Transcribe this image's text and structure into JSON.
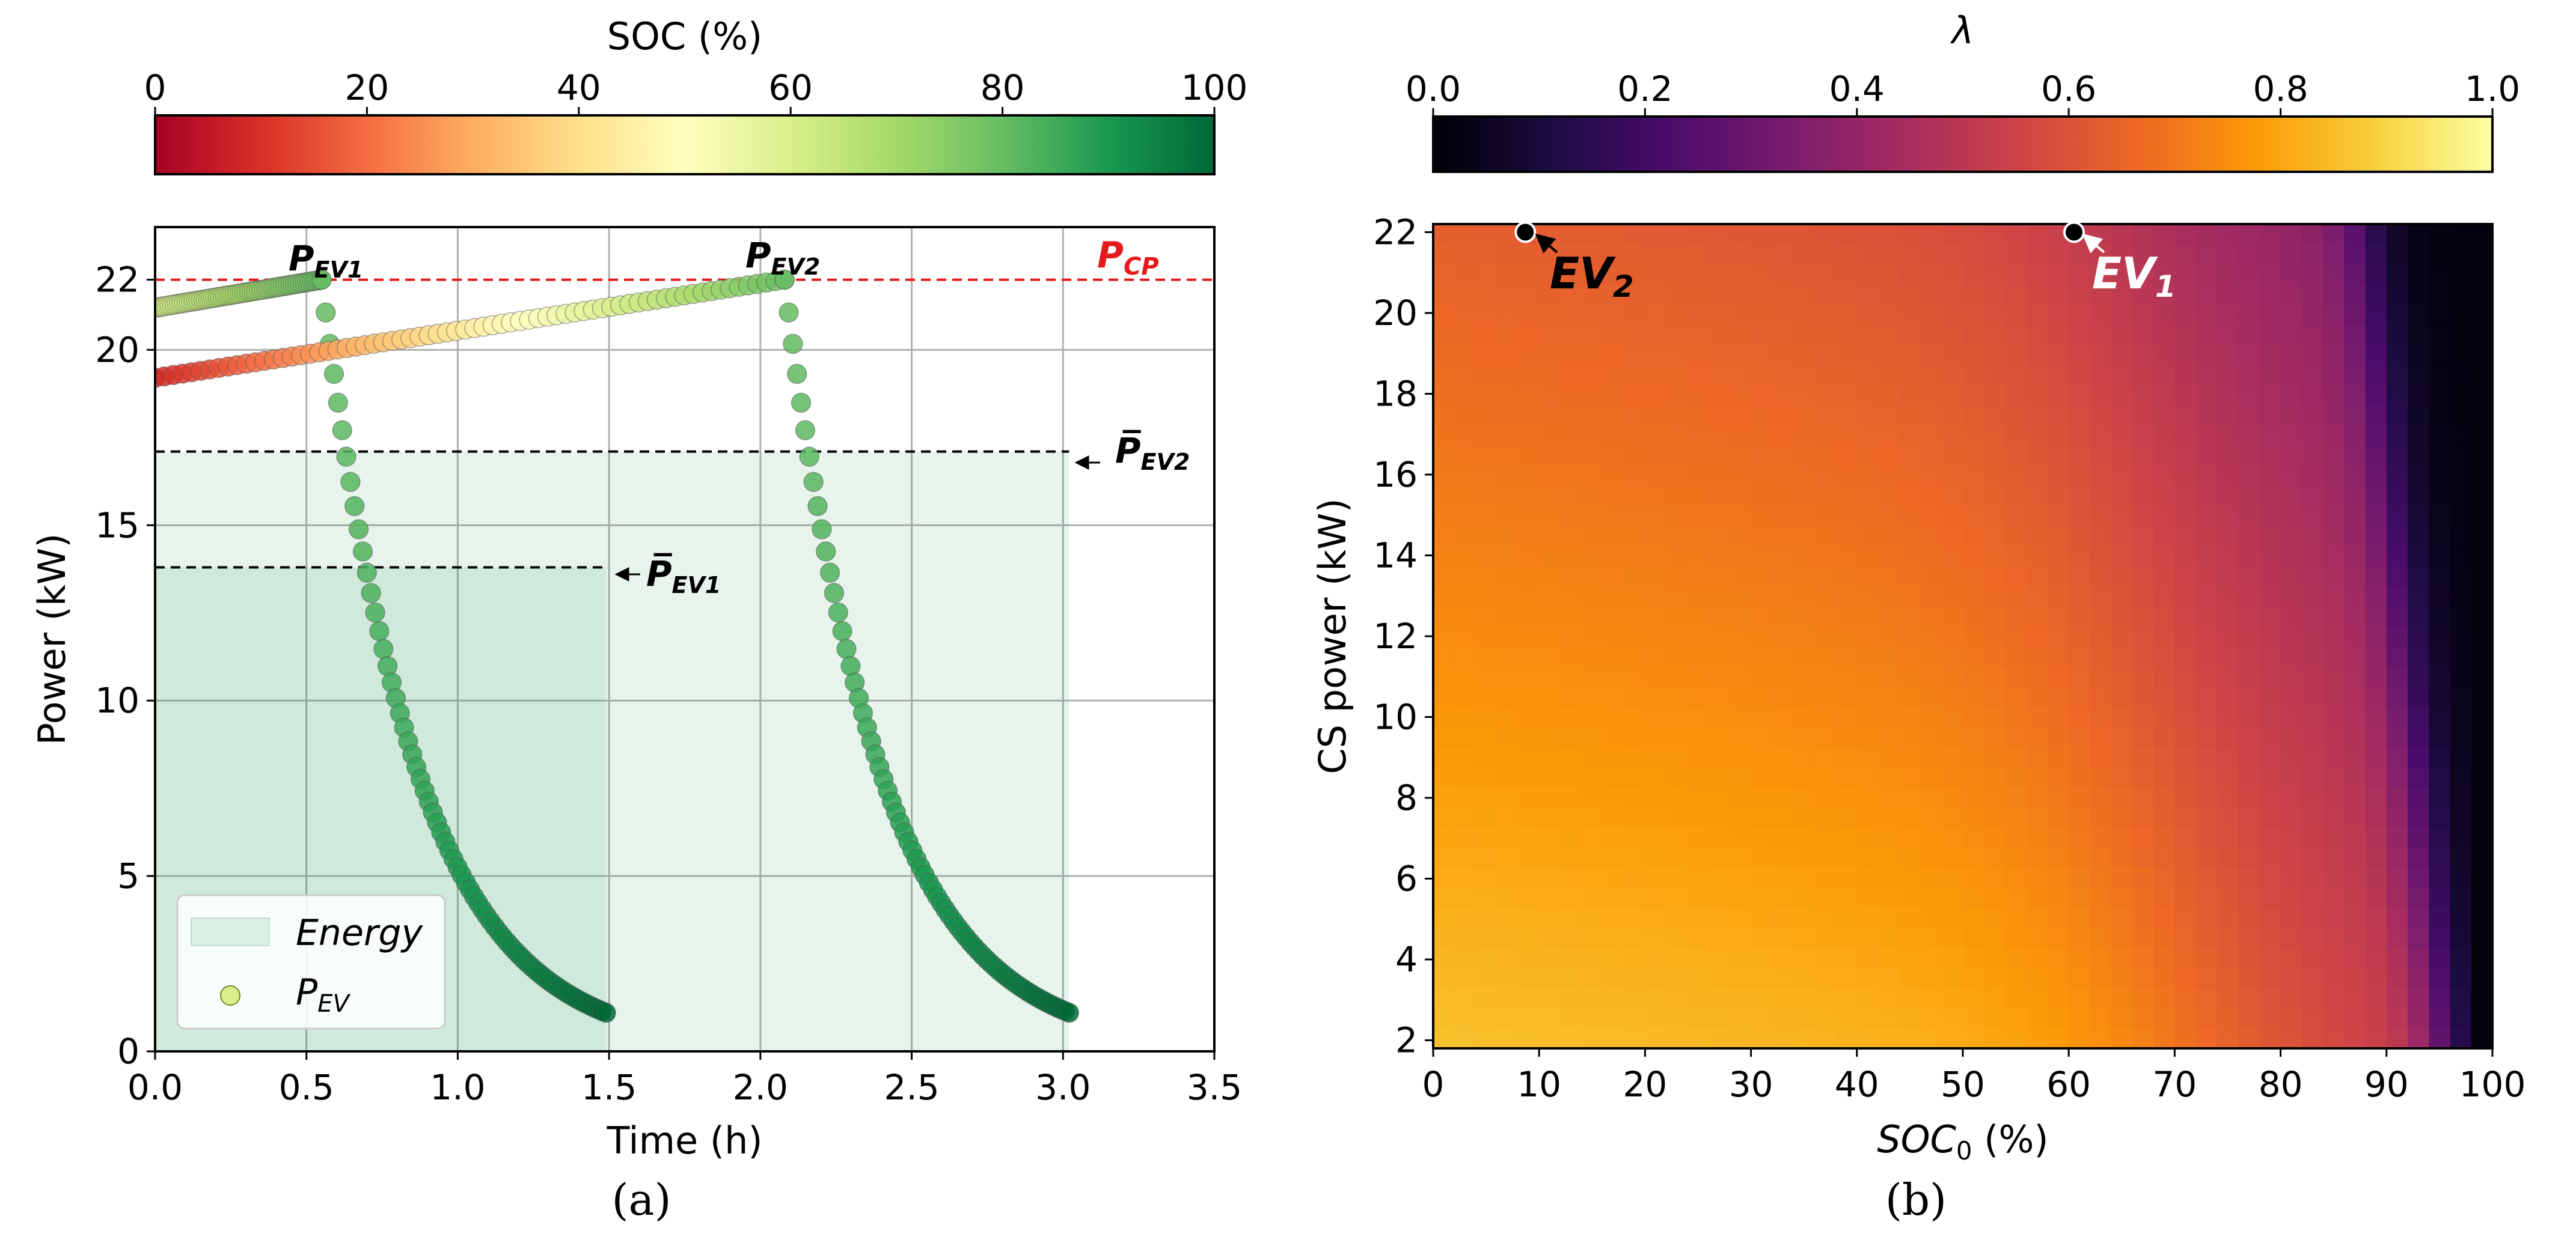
{
  "colors": {
    "soc_cmap": [
      "#a50026",
      "#d73027",
      "#f46d43",
      "#fdae61",
      "#fee08b",
      "#ffffbf",
      "#d9ef8b",
      "#a6d96a",
      "#66bd63",
      "#1a9850",
      "#006837"
    ],
    "lambda_cmap": [
      "#000004",
      "#1b0c41",
      "#4a0c6b",
      "#781c6d",
      "#a52c60",
      "#cf4446",
      "#ed6925",
      "#fb9b06",
      "#f7d13d",
      "#fcffa4"
    ],
    "energy_fill": "#1a9850",
    "p_cp_line": "#e41a1c",
    "avg_line": "#000000",
    "grid": "#b0b0b0"
  },
  "chart_data": [
    {
      "type": "scatter",
      "id": "a",
      "caption": "(a)",
      "colorbar_title": "SOC (%)",
      "colorbar_ticks": [
        "0",
        "20",
        "40",
        "60",
        "80",
        "100"
      ],
      "colorbar_range": [
        0,
        100
      ],
      "xlabel": "Time (h)",
      "ylabel": "Power (kW)",
      "xlim": [
        0,
        3.5
      ],
      "ylim": [
        0,
        23.5
      ],
      "xticks": [
        "0.0",
        "0.5",
        "1.0",
        "1.5",
        "2.0",
        "2.5",
        "3.0",
        "3.5"
      ],
      "xtick_values": [
        0,
        0.5,
        1.0,
        1.5,
        2.0,
        2.5,
        3.0,
        3.5
      ],
      "yticks": [
        "0",
        "5",
        "10",
        "15",
        "20",
        "22"
      ],
      "ytick_values": [
        0,
        5,
        10,
        15,
        20,
        22
      ],
      "grid": true,
      "legend": {
        "position": "bottom-left",
        "entries": [
          "Energy",
          "P_EV"
        ],
        "energy_label": "Energy",
        "pev_label_main": "P",
        "pev_label_sub": "EV"
      },
      "p_cp": {
        "value": 22,
        "label_main": "P",
        "label_sub": "CP"
      },
      "series": [
        {
          "name": "EV1",
          "label_main": "P",
          "label_sub": "EV1",
          "avg_label_main": "P̅",
          "avg_label_sub": "EV1",
          "t_start": 0.0,
          "t_cc_end": 0.55,
          "t_end": 1.49,
          "p_start": 21.2,
          "p_peak": 22.0,
          "p_end": 1.1,
          "soc_start": 60,
          "soc_cc_end": 80,
          "soc_end": 100,
          "avg_power": 13.8,
          "energy_end_time": 1.49
        },
        {
          "name": "EV2",
          "label_main": "P",
          "label_sub": "EV2",
          "avg_label_main": "P̅",
          "avg_label_sub": "EV2",
          "t_start": 0.0,
          "t_cc_end": 2.08,
          "t_end": 3.02,
          "p_start": 19.2,
          "p_peak": 22.0,
          "p_end": 1.1,
          "soc_start": 8,
          "soc_cc_end": 80,
          "soc_end": 100,
          "avg_power": 17.1,
          "energy_end_time": 3.02
        }
      ]
    },
    {
      "type": "heatmap",
      "id": "b",
      "caption": "(b)",
      "colorbar_title": "λ",
      "colorbar_ticks": [
        "0.0",
        "0.2",
        "0.4",
        "0.6",
        "0.8",
        "1.0"
      ],
      "colorbar_range": [
        0,
        1
      ],
      "xlabel_main": "SOC",
      "xlabel_sub": "0",
      "xlabel_unit": " (%)",
      "ylabel": "CS power (kW)",
      "xlim": [
        0,
        100
      ],
      "ylim": [
        1.8,
        22.2
      ],
      "xticks": [
        "0",
        "10",
        "20",
        "30",
        "40",
        "50",
        "60",
        "70",
        "80",
        "90",
        "100"
      ],
      "xtick_values": [
        0,
        10,
        20,
        30,
        40,
        50,
        60,
        70,
        80,
        90,
        100
      ],
      "yticks": [
        "2",
        "4",
        "6",
        "8",
        "10",
        "12",
        "14",
        "16",
        "18",
        "20",
        "22"
      ],
      "ytick_values": [
        2,
        4,
        6,
        8,
        10,
        12,
        14,
        16,
        18,
        20,
        22
      ],
      "soc_steps": 50,
      "power_steps": 41,
      "markers": [
        {
          "name": "EV2",
          "label_main": "EV",
          "label_sub": "2",
          "soc": 8.7,
          "power": 22.0
        },
        {
          "name": "EV1",
          "label_main": "EV",
          "label_sub": "1",
          "soc": 60.5,
          "power": 22.0
        }
      ]
    }
  ]
}
